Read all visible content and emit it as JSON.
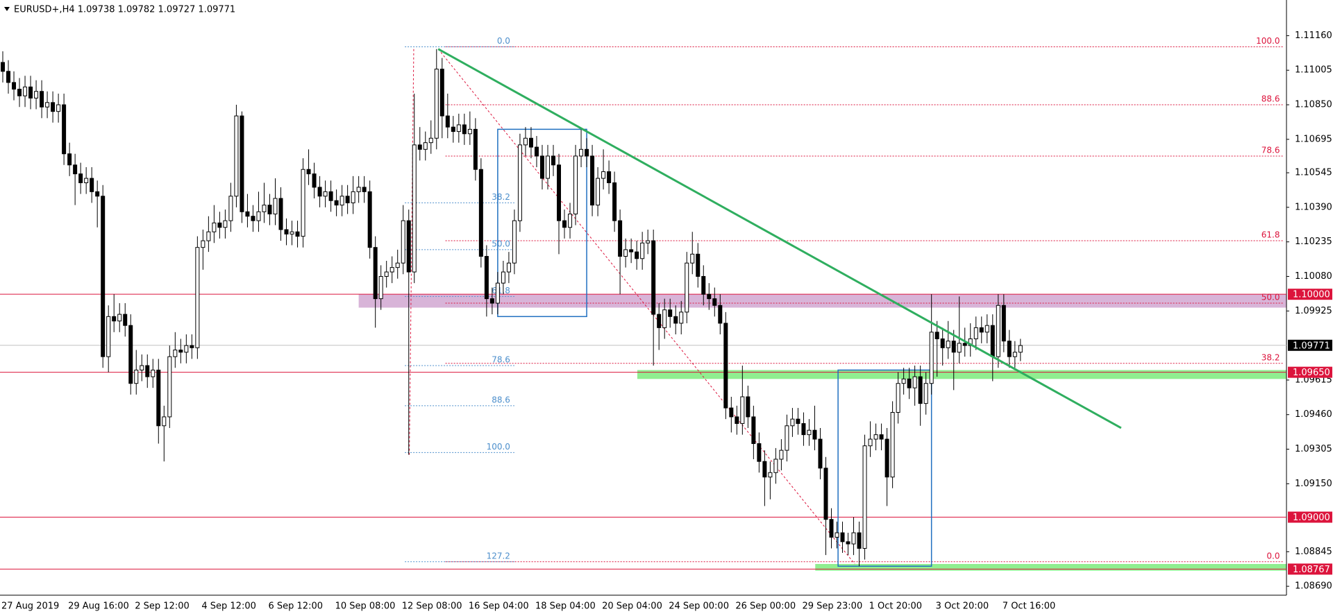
{
  "chart_data": {
    "type": "candlestick",
    "title": "EURUSD+,H4  1.09738 1.09782 1.09727 1.09771",
    "categories": [
      "27 Aug 2019",
      null,
      null,
      null,
      null,
      null,
      null,
      null,
      null,
      null,
      null,
      null,
      "29 Aug 16:00",
      null,
      null,
      null,
      null,
      null,
      null,
      null,
      null,
      null,
      null,
      null,
      "2 Sep 12:00",
      null,
      null,
      null,
      null,
      null,
      null,
      null,
      null,
      null,
      null,
      null,
      "4 Sep 12:00",
      null,
      null,
      null,
      null,
      null,
      null,
      null,
      null,
      null,
      null,
      null,
      "6 Sep 12:00",
      null,
      null,
      null,
      null,
      null,
      null,
      null,
      null,
      null,
      null,
      null,
      "10 Sep 08:00",
      null,
      null,
      null,
      null,
      null,
      null,
      null,
      null,
      null,
      null,
      null,
      "12 Sep 08:00",
      null,
      null,
      null,
      null,
      null,
      null,
      null,
      null,
      null,
      null,
      null,
      "16 Sep 04:00",
      null,
      null,
      null,
      null,
      null,
      null,
      null,
      null,
      null,
      null,
      null,
      "18 Sep 04:00",
      null,
      null,
      null,
      null,
      null,
      null,
      null,
      null,
      null,
      null,
      null,
      "20 Sep 04:00",
      null,
      null,
      null,
      null,
      null,
      null,
      null,
      null,
      null,
      null,
      null,
      "24 Sep 00:00",
      null,
      null,
      null,
      null,
      null,
      null,
      null,
      null,
      null,
      null,
      null,
      "26 Sep 00:00",
      null,
      null,
      null,
      null,
      null,
      null,
      null,
      null,
      null,
      null,
      null,
      "29 Sep 23:00",
      null,
      null,
      null,
      null,
      null,
      null,
      null,
      null,
      null,
      null,
      null,
      "1 Oct 20:00",
      null,
      null,
      null,
      null,
      null,
      null,
      null,
      null,
      null,
      null,
      null,
      "3 Oct 20:00",
      null,
      null,
      null,
      null,
      null,
      null,
      null,
      null,
      null,
      null,
      null,
      "7 Oct 16:00",
      null,
      null,
      null
    ],
    "open": [
      1.1104,
      1.11,
      1.1095,
      1.1092,
      1.1089,
      1.1093,
      1.1088,
      1.1091,
      1.1084,
      1.1086,
      1.1082,
      1.1085,
      1.1063,
      1.1058,
      1.1054,
      1.105,
      1.1052,
      1.1046,
      1.1044,
      1.0972,
      1.099,
      1.0988,
      1.0991,
      1.0986,
      1.096,
      1.0966,
      1.0968,
      1.0963,
      1.0966,
      1.0941,
      1.0945,
      1.0972,
      1.0975,
      1.0974,
      1.0977,
      1.0976,
      1.1021,
      1.1024,
      1.1028,
      1.1032,
      1.103,
      1.1033,
      1.1044,
      1.108,
      1.1037,
      1.1035,
      1.1033,
      1.1037,
      1.104,
      1.1036,
      1.1043,
      1.1029,
      1.1027,
      1.1028,
      1.1026,
      1.1056,
      1.1054,
      1.1048,
      1.1044,
      1.1046,
      1.1042,
      1.104,
      1.1044,
      1.1041,
      1.1046,
      1.1048,
      1.1046,
      1.1021,
      1.0998,
      1.1008,
      1.101,
      1.1012,
      1.1014,
      1.1033,
      1.101,
      1.1067,
      1.1065,
      1.1068,
      1.107,
      1.1101,
      1.108,
      1.1075,
      1.1073,
      1.1076,
      1.1072,
      1.1074,
      1.1056,
      1.1017,
      1.0998,
      1.0996,
      1.1005,
      1.101,
      1.1014,
      1.1033,
      1.1067,
      1.107,
      1.1066,
      1.1062,
      1.1052,
      1.1062,
      1.1058,
      1.1033,
      1.103,
      1.1036,
      1.1062,
      1.1065,
      1.1062,
      1.104,
      1.1052,
      1.1055,
      1.105,
      1.1033,
      1.1017,
      1.102,
      1.1019,
      1.1016,
      1.1023,
      1.1024,
      1.0991,
      1.0985,
      1.0993,
      1.099,
      1.0987,
      1.0992,
      1.1014,
      1.1018,
      1.1008,
      1.1,
      1.0998,
      1.0995,
      1.0987,
      1.0949,
      1.0945,
      1.0942,
      1.0954,
      1.0945,
      1.0933,
      1.0925,
      1.0918,
      1.092,
      1.0926,
      1.093,
      1.0941,
      1.0944,
      1.0942,
      1.0937,
      1.0939,
      1.0935,
      1.0922,
      1.0899,
      1.0891,
      1.0893,
      1.0889,
      1.0888,
      1.0893,
      1.0886,
      1.0932,
      1.0935,
      1.0937,
      1.0935,
      1.0918,
      1.0947,
      1.096,
      1.0962,
      1.0958,
      1.0963,
      1.0951,
      1.096,
      1.0983,
      1.098,
      1.0976,
      1.0979,
      1.0974,
      1.0978,
      1.0977,
      1.098,
      1.0985,
      1.0983,
      1.0986,
      1.0972,
      1.0995,
      1.0979,
      1.0972,
      1.0974
    ],
    "high": [
      1.1109,
      1.1105,
      1.11,
      1.1097,
      1.1098,
      1.1098,
      1.1096,
      1.1096,
      1.1091,
      1.1091,
      1.109,
      1.109,
      1.1068,
      1.1063,
      1.1059,
      1.1057,
      1.1057,
      1.1051,
      1.1049,
      1.0995,
      1.1,
      1.0996,
      1.0996,
      1.0991,
      1.0975,
      1.0973,
      1.0973,
      1.0971,
      1.0971,
      1.095,
      1.0977,
      1.0983,
      1.098,
      1.0982,
      1.0982,
      1.1026,
      1.1029,
      1.1035,
      1.104,
      1.1037,
      1.1038,
      1.105,
      1.1085,
      1.1082,
      1.1045,
      1.104,
      1.1046,
      1.105,
      1.1045,
      1.1052,
      1.1048,
      1.1034,
      1.1033,
      1.1033,
      1.1061,
      1.1065,
      1.1059,
      1.1053,
      1.1051,
      1.1051,
      1.1047,
      1.1049,
      1.1049,
      1.1053,
      1.1053,
      1.1053,
      1.1051,
      1.1026,
      1.1013,
      1.1015,
      1.1017,
      1.102,
      1.104,
      1.1038,
      1.109,
      1.1075,
      1.1073,
      1.1078,
      1.111,
      1.1106,
      1.109,
      1.108,
      1.1081,
      1.1081,
      1.1082,
      1.1079,
      1.1061,
      1.1022,
      1.1003,
      1.101,
      1.1015,
      1.1019,
      1.1038,
      1.1072,
      1.1075,
      1.1075,
      1.1071,
      1.1067,
      1.1067,
      1.1067,
      1.1063,
      1.1038,
      1.1041,
      1.1067,
      1.1074,
      1.107,
      1.1067,
      1.1057,
      1.1065,
      1.106,
      1.1055,
      1.1038,
      1.1025,
      1.1025,
      1.1024,
      1.1028,
      1.1029,
      1.1029,
      1.0996,
      1.0998,
      1.0998,
      1.0995,
      1.0997,
      1.1019,
      1.1028,
      1.1023,
      1.1013,
      1.1005,
      1.1003,
      1.1,
      1.0992,
      1.0954,
      1.095,
      1.0968,
      1.0959,
      1.095,
      1.0938,
      1.093,
      1.0925,
      1.0931,
      1.0935,
      1.0946,
      1.0949,
      1.0949,
      1.0947,
      1.0944,
      1.095,
      1.094,
      1.0927,
      1.0904,
      1.0898,
      1.0898,
      1.0893,
      1.09,
      1.0898,
      1.0937,
      1.0943,
      1.0942,
      1.0942,
      1.094,
      1.0952,
      1.0965,
      1.0967,
      1.0967,
      1.0968,
      1.0968,
      1.0965,
      1.1,
      1.0988,
      1.0985,
      1.0988,
      1.0984,
      1.0999,
      1.0985,
      1.0987,
      1.099,
      1.099,
      1.0991,
      1.0991,
      1.1,
      1.1,
      1.0984,
      1.0979,
      1.098
    ],
    "low": [
      1.1095,
      1.109,
      1.1087,
      1.1084,
      1.1084,
      1.1083,
      1.1083,
      1.1079,
      1.1079,
      1.1077,
      1.1077,
      1.1058,
      1.1053,
      1.104,
      1.1045,
      1.1045,
      1.1041,
      1.103,
      1.0967,
      1.0965,
      1.0983,
      1.0983,
      1.0981,
      1.0955,
      1.0955,
      1.0961,
      1.0958,
      1.0958,
      1.0933,
      1.0925,
      1.094,
      1.0967,
      1.0969,
      1.0969,
      1.0971,
      1.0971,
      1.1011,
      1.1019,
      1.1023,
      1.1025,
      1.1025,
      1.1028,
      1.1039,
      1.1032,
      1.103,
      1.1028,
      1.1028,
      1.1032,
      1.1031,
      1.1031,
      1.1024,
      1.1022,
      1.1022,
      1.1021,
      1.1021,
      1.1049,
      1.1043,
      1.1039,
      1.1039,
      1.1037,
      1.1035,
      1.1035,
      1.1036,
      1.1036,
      1.1041,
      1.1041,
      1.1016,
      1.0985,
      1.0993,
      1.1003,
      1.1005,
      1.1007,
      1.1009,
      1.0928,
      1.1005,
      1.106,
      1.106,
      1.1063,
      1.1065,
      1.107,
      1.107,
      1.1068,
      1.1068,
      1.1067,
      1.1067,
      1.1051,
      1.1012,
      1.099,
      1.0991,
      1.0991,
      1.1,
      1.1005,
      1.1009,
      1.1028,
      1.1062,
      1.1061,
      1.1057,
      1.1047,
      1.1047,
      1.1053,
      1.1018,
      1.1025,
      1.1025,
      1.1031,
      1.1057,
      1.1057,
      1.1035,
      1.1035,
      1.1047,
      1.1045,
      1.1028,
      1.1,
      1.1012,
      1.1014,
      1.1011,
      1.1011,
      1.1018,
      1.0968,
      1.0975,
      1.098,
      1.0985,
      1.0982,
      1.0982,
      1.0987,
      1.1009,
      1.1003,
      1.0995,
      1.0993,
      1.099,
      1.0982,
      1.0944,
      1.0938,
      1.0937,
      1.0937,
      1.094,
      1.0926,
      1.092,
      1.0905,
      1.0908,
      1.0915,
      1.0921,
      1.0925,
      1.0936,
      1.0937,
      1.0932,
      1.0932,
      1.093,
      1.0917,
      1.0883,
      1.0886,
      1.0886,
      1.0884,
      1.0883,
      1.0883,
      1.0878,
      1.0881,
      1.0927,
      1.093,
      1.093,
      1.0905,
      1.0913,
      1.0942,
      1.0955,
      1.0953,
      1.095,
      1.0941,
      1.0946,
      1.0955,
      1.0963,
      1.0968,
      1.0971,
      1.0957,
      1.0969,
      1.0972,
      1.0972,
      1.0975,
      1.0978,
      1.0978,
      1.0961,
      1.0967,
      1.0974,
      1.0967,
      1.0967,
      1.097
    ],
    "close": [
      1.11,
      1.1095,
      1.1092,
      1.1089,
      1.1093,
      1.1088,
      1.1091,
      1.1084,
      1.1086,
      1.1082,
      1.1085,
      1.1063,
      1.1058,
      1.1054,
      1.105,
      1.1052,
      1.1046,
      1.1044,
      1.0972,
      1.099,
      1.0988,
      1.0991,
      1.0986,
      1.096,
      1.0966,
      1.0968,
      1.0963,
      1.0966,
      1.0941,
      1.0945,
      1.0972,
      1.0975,
      1.0974,
      1.0977,
      1.0976,
      1.1021,
      1.1024,
      1.1028,
      1.1032,
      1.103,
      1.1033,
      1.1044,
      1.108,
      1.1037,
      1.1035,
      1.1033,
      1.1037,
      1.104,
      1.1036,
      1.1043,
      1.1029,
      1.1027,
      1.1028,
      1.1026,
      1.1056,
      1.1054,
      1.1048,
      1.1044,
      1.1046,
      1.1042,
      1.104,
      1.1044,
      1.1041,
      1.1046,
      1.1048,
      1.1046,
      1.1021,
      1.0998,
      1.1008,
      1.101,
      1.1012,
      1.1014,
      1.1033,
      1.101,
      1.1067,
      1.1065,
      1.1068,
      1.107,
      1.1101,
      1.108,
      1.1075,
      1.1073,
      1.1076,
      1.1072,
      1.1074,
      1.1056,
      1.1017,
      1.0998,
      1.0996,
      1.1005,
      1.101,
      1.1014,
      1.1033,
      1.1067,
      1.107,
      1.1066,
      1.1062,
      1.1052,
      1.1062,
      1.1058,
      1.1033,
      1.103,
      1.1036,
      1.1062,
      1.1065,
      1.1062,
      1.104,
      1.1052,
      1.1055,
      1.105,
      1.1033,
      1.1017,
      1.102,
      1.1019,
      1.1016,
      1.1023,
      1.1024,
      1.0991,
      1.0985,
      1.0993,
      1.099,
      1.0987,
      1.0992,
      1.1014,
      1.1018,
      1.1008,
      1.1,
      1.0998,
      1.0995,
      1.0987,
      1.0949,
      1.0945,
      1.0942,
      1.0954,
      1.0945,
      1.0933,
      1.0925,
      1.0918,
      1.092,
      1.0926,
      1.093,
      1.0941,
      1.0944,
      1.0942,
      1.0937,
      1.0939,
      1.0935,
      1.0922,
      1.0899,
      1.0891,
      1.0893,
      1.0889,
      1.0888,
      1.0893,
      1.0886,
      1.0932,
      1.0935,
      1.0937,
      1.0935,
      1.0918,
      1.0947,
      1.096,
      1.0962,
      1.0958,
      1.0963,
      1.0951,
      1.096,
      1.0983,
      1.098,
      1.0976,
      1.0979,
      1.0974,
      1.0978,
      1.0977,
      1.098,
      1.0985,
      1.0983,
      1.0986,
      1.0972,
      1.0995,
      1.0979,
      1.0972,
      1.0974,
      1.0977
    ],
    "up_color": "#ffffff",
    "down_color": "#000000",
    "ylim": [
      1.0865,
      1.1132
    ],
    "yticks": [
      {
        "value": 1.1116,
        "label": "1.11160"
      },
      {
        "value": 1.11005,
        "label": "1.11005"
      },
      {
        "value": 1.1085,
        "label": "1.10850"
      },
      {
        "value": 1.10695,
        "label": "1.10695"
      },
      {
        "value": 1.10545,
        "label": "1.10545"
      },
      {
        "value": 1.1039,
        "label": "1.10390"
      },
      {
        "value": 1.10235,
        "label": "1.10235"
      },
      {
        "value": 1.1008,
        "label": "1.10080"
      },
      {
        "value": 1.09925,
        "label": "1.09925"
      },
      {
        "value": 1.09615,
        "label": "1.09615"
      },
      {
        "value": 1.0946,
        "label": "1.09460"
      },
      {
        "value": 1.09305,
        "label": "1.09305"
      },
      {
        "value": 1.0915,
        "label": "1.09150"
      },
      {
        "value": 1.08845,
        "label": "1.08845"
      },
      {
        "value": 1.0869,
        "label": "1.08690"
      }
    ],
    "levels": [
      {
        "value": 1.1,
        "label": "1.10000",
        "color": "#dc143c",
        "line_color": "#dc143c"
      },
      {
        "value": 1.09771,
        "label": "1.09771",
        "color": "#000000",
        "line_color": "#c0c0c0"
      },
      {
        "value": 1.0965,
        "label": "1.09650",
        "color": "#dc143c",
        "line_color": "#dc143c"
      },
      {
        "value": 1.09,
        "label": "1.09000",
        "color": "#dc143c",
        "line_color": "#dc143c"
      },
      {
        "value": 1.08767,
        "label": "1.08767",
        "color": "#dc143c",
        "line_color": "#dc143c"
      }
    ],
    "zones": [
      {
        "x0": 64.0,
        "high": 1.1,
        "low": 1.0994,
        "color": "#d8b4d8"
      },
      {
        "x0": 114.1,
        "high": 1.0966,
        "low": 1.0962,
        "color": "#90ee90"
      },
      {
        "x0": 146.1,
        "high": 1.0879,
        "low": 1.0876,
        "color": "#90ee90"
      }
    ],
    "boxes": [
      {
        "x": [
          89.0,
          105.0
        ],
        "y": [
          1.099,
          1.1074
        ],
        "color": "#1f6fc0"
      },
      {
        "x": [
          150.2,
          167.0
        ],
        "y": [
          1.0878,
          1.0966
        ],
        "color": "#1f6fc0"
      }
    ],
    "trendline": {
      "x": [
        78.3,
        201.1
      ],
      "y": [
        1.111,
        1.094
      ],
      "color": "#2fae5f"
    },
    "rays": {
      "color": "#dc143c",
      "lines": [
        {
          "x": [
            78.3,
            153.2
          ],
          "y": [
            1.111,
            1.0879
          ]
        },
        {
          "x": [
            73.9,
            73.1
          ],
          "y": [
            1.111,
            1.0927
          ]
        }
      ]
    },
    "fibs": [
      {
        "color": "#dc143c",
        "x": [
          79.6,
          230.4
        ],
        "levels": [
          {
            "ratio": "100.0",
            "price": 1.1111
          },
          {
            "ratio": "88.6",
            "price": 1.1085
          },
          {
            "ratio": "78.6",
            "price": 1.1062
          },
          {
            "ratio": "61.8",
            "price": 1.1024
          },
          {
            "ratio": "50.0",
            "price": 1.0996
          },
          {
            "ratio": "38.2",
            "price": 1.0969
          },
          {
            "ratio": "0.0",
            "price": 1.088
          }
        ]
      },
      {
        "color": "#4d8fcc",
        "x": [
          72.3,
          92.0
        ],
        "levels": [
          {
            "ratio": "0.0",
            "price": 1.1111
          },
          {
            "ratio": "38.2",
            "price": 1.1041
          },
          {
            "ratio": "50.0",
            "price": 1.102
          },
          {
            "ratio": "61.8",
            "price": 1.0999
          },
          {
            "ratio": "78.6",
            "price": 1.0968
          },
          {
            "ratio": "88.6",
            "price": 1.095
          },
          {
            "ratio": "100.0",
            "price": 1.0929
          },
          {
            "ratio": "127.2",
            "price": 1.088
          }
        ]
      }
    ]
  }
}
